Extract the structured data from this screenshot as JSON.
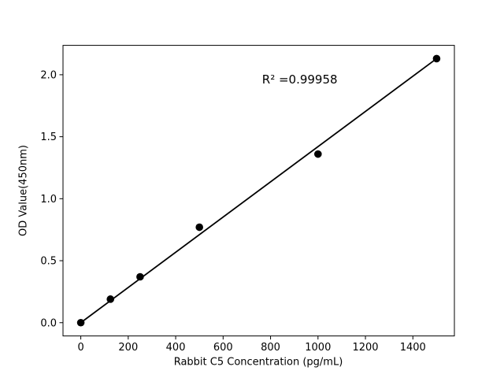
{
  "figure": {
    "background": "#ffffff"
  },
  "chart_data": {
    "type": "scatter",
    "title": "",
    "xlabel": "Rabbit C5 Concentration (pg/mL)",
    "ylabel": "OD Value(450nm)",
    "annotation": {
      "text": "R² =0.99958",
      "fx": 0.605,
      "fy": 0.118
    },
    "series": [
      {
        "name": "standard-curve-points",
        "x": [
          0,
          125,
          250,
          500,
          1000,
          1500
        ],
        "y": [
          0.0,
          0.19,
          0.37,
          0.77,
          1.36,
          2.13
        ]
      }
    ],
    "trendline": {
      "x1": 0,
      "y1": 0.0,
      "x2": 1500,
      "y2": 2.13
    },
    "axes": {
      "xlim": [
        -75,
        1575
      ],
      "ylim": [
        -0.107,
        2.237
      ],
      "xticks": [
        {
          "value": 0,
          "label": "0"
        },
        {
          "value": 200,
          "label": "200"
        },
        {
          "value": 400,
          "label": "400"
        },
        {
          "value": 600,
          "label": "600"
        },
        {
          "value": 800,
          "label": "800"
        },
        {
          "value": 1000,
          "label": "1000"
        },
        {
          "value": 1200,
          "label": "1200"
        },
        {
          "value": 1400,
          "label": "1400"
        }
      ],
      "yticks": [
        {
          "value": 0.0,
          "label": "0.0"
        },
        {
          "value": 0.5,
          "label": "0.5"
        },
        {
          "value": 1.0,
          "label": "1.0"
        },
        {
          "value": 1.5,
          "label": "1.5"
        },
        {
          "value": 2.0,
          "label": "2.0"
        }
      ],
      "grid": false,
      "legend": "none"
    },
    "colors": {
      "marker": "#000000",
      "line": "#000000",
      "spine": "#000000",
      "text": "#000000",
      "background": "#ffffff"
    }
  }
}
